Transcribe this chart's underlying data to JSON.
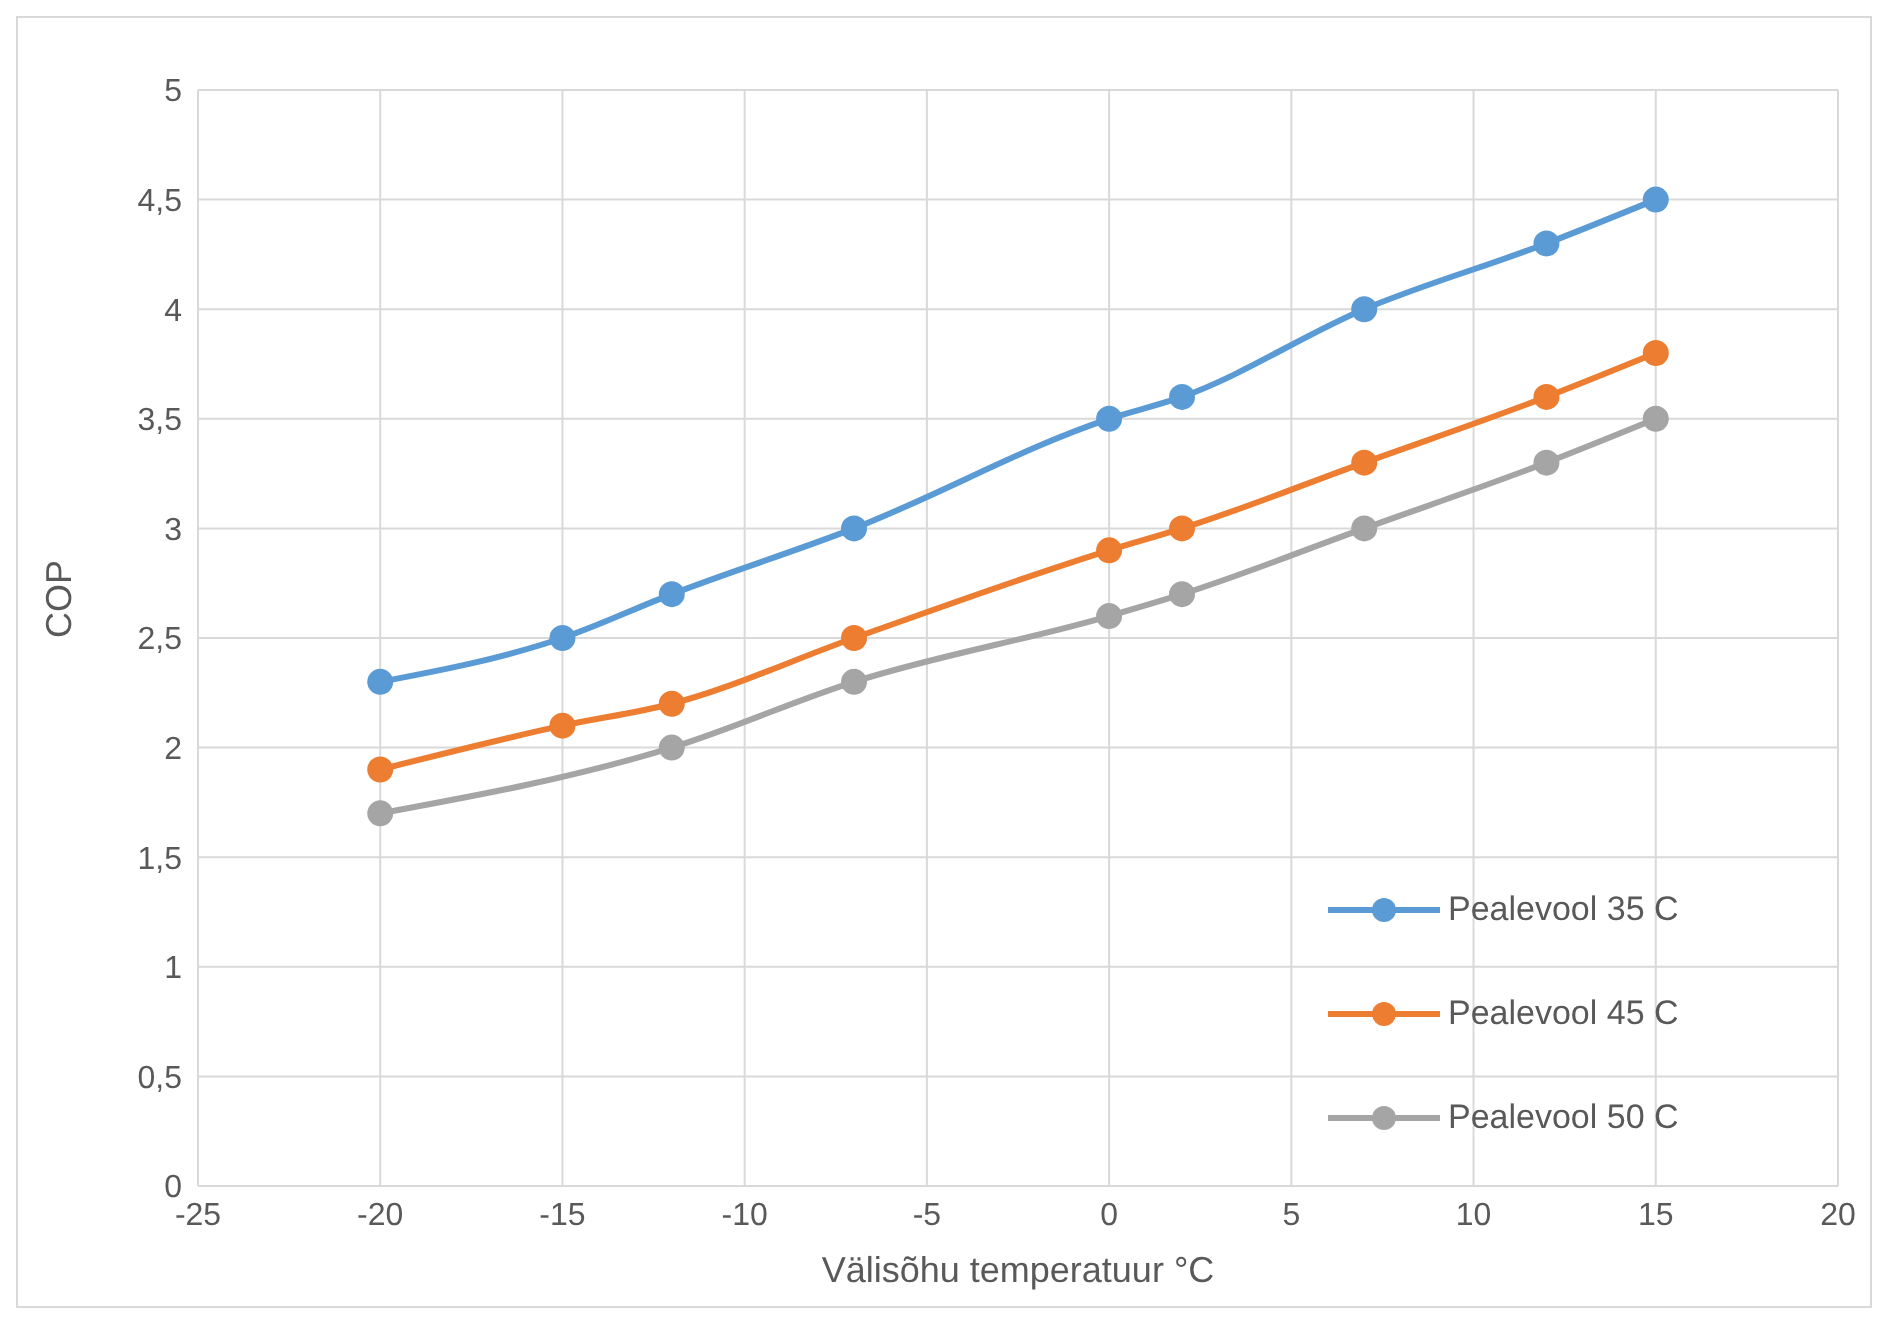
{
  "chart_data": {
    "type": "line",
    "xlabel": "Välisõhu temperatuur °C",
    "ylabel": "COP",
    "x": [
      -20,
      -15,
      -12,
      -7,
      0,
      2,
      7,
      12,
      15
    ],
    "series": [
      {
        "name": "Pealevool 35 C",
        "color": "#5b9bd5",
        "values": [
          2.3,
          2.5,
          2.7,
          3.0,
          3.5,
          3.6,
          4.0,
          4.3,
          4.5
        ]
      },
      {
        "name": "Pealevool 45 C",
        "color": "#ed7d31",
        "values": [
          1.9,
          2.1,
          2.2,
          2.5,
          2.9,
          3.0,
          3.3,
          3.6,
          3.8
        ]
      },
      {
        "name": "Pealevool 50 C",
        "color": "#a5a5a5",
        "x": [
          -20,
          -12,
          -7,
          0,
          2,
          7,
          12,
          15
        ],
        "values": [
          1.7,
          2.0,
          2.3,
          2.6,
          2.7,
          3.0,
          3.3,
          3.5
        ]
      }
    ],
    "xlim": [
      -25,
      20
    ],
    "xticks": [
      -25,
      -20,
      -15,
      -10,
      -5,
      0,
      5,
      10,
      15,
      20
    ],
    "ylim": [
      0,
      5
    ],
    "yticks": [
      0,
      {
        "value": 0.5,
        "label": "0,5"
      },
      1,
      {
        "value": 1.5,
        "label": "1,5"
      },
      2,
      {
        "value": 2.5,
        "label": "2,5"
      },
      3,
      {
        "value": 3.5,
        "label": "3,5"
      },
      4,
      {
        "value": 4.5,
        "label": "4,5"
      },
      5
    ],
    "grid": true,
    "legend": "bottom right",
    "marker": "circle",
    "line_style": "solid"
  }
}
